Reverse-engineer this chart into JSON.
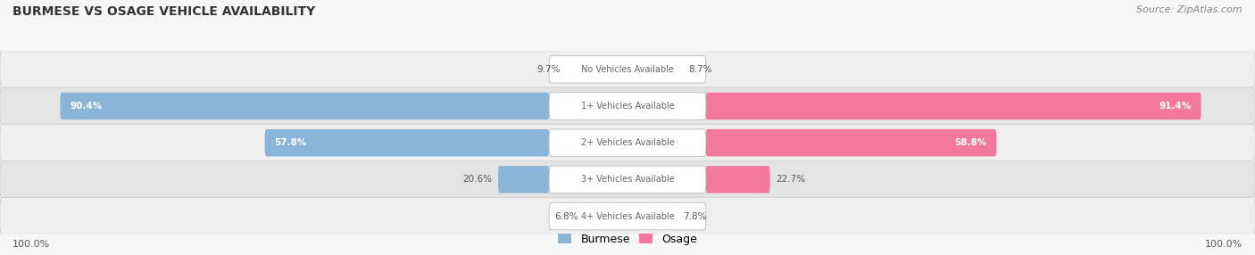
{
  "title": "BURMESE VS OSAGE VEHICLE AVAILABILITY",
  "source": "Source: ZipAtlas.com",
  "categories": [
    "No Vehicles Available",
    "1+ Vehicles Available",
    "2+ Vehicles Available",
    "3+ Vehicles Available",
    "4+ Vehicles Available"
  ],
  "burmese_values": [
    9.7,
    90.4,
    57.8,
    20.6,
    6.8
  ],
  "osage_values": [
    8.7,
    91.4,
    58.8,
    22.7,
    7.8
  ],
  "burmese_color": "#8ab4d8",
  "osage_color": "#f2789e",
  "burmese_color_light": "#b8d0e8",
  "osage_color_light": "#f8b4cc",
  "row_colors": [
    "#efefef",
    "#e4e4e4"
  ],
  "legend_burmese": "Burmese",
  "legend_osage": "Osage",
  "max_value": 100.0,
  "figsize": [
    14.06,
    2.86
  ],
  "dpi": 100,
  "white": "#ffffff",
  "dark_text": "#555555",
  "title_color": "#333333",
  "source_color": "#888888",
  "label_text_dark": "#666666"
}
